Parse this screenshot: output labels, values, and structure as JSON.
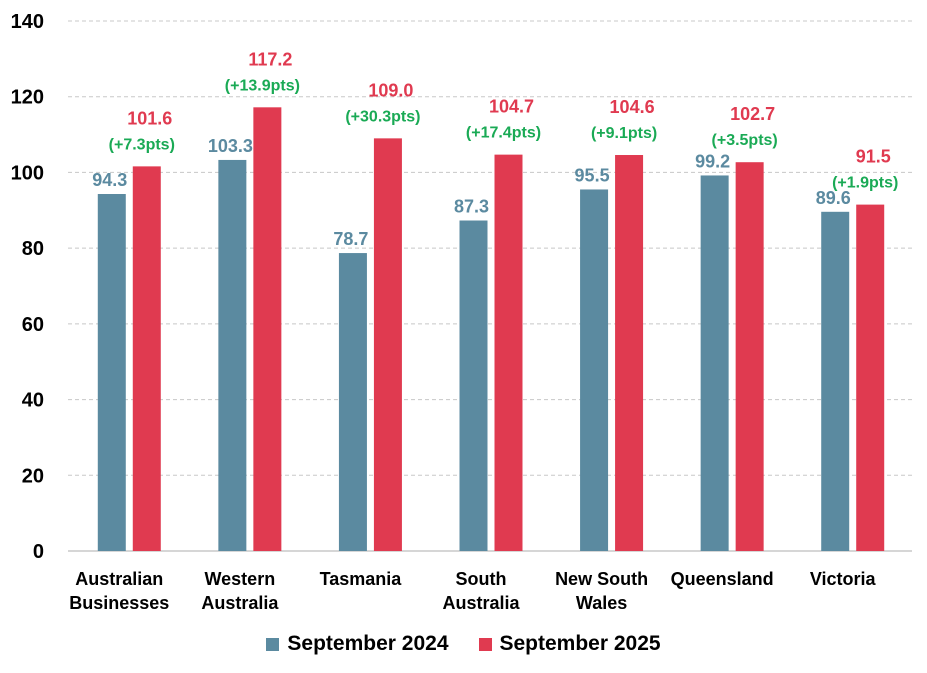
{
  "chart_data": {
    "type": "bar",
    "title": "",
    "xlabel": "",
    "ylabel": "",
    "ylim": [
      0,
      140
    ],
    "yticks": [
      0,
      20,
      40,
      60,
      80,
      100,
      120,
      140
    ],
    "grid": true,
    "legend_position": "bottom",
    "categories": [
      [
        "Australian",
        "Businesses"
      ],
      [
        "Western",
        "Australia"
      ],
      [
        "Tasmania"
      ],
      [
        "South",
        "Australia"
      ],
      [
        "New South",
        "Wales"
      ],
      [
        "Queensland"
      ],
      [
        "Victoria"
      ]
    ],
    "series": [
      {
        "name": "September 2024",
        "color": "#5b8aa0",
        "values": [
          94.3,
          103.3,
          78.7,
          87.3,
          95.5,
          99.2,
          89.6
        ],
        "labels": [
          "94.3",
          "103.3",
          "78.7",
          "87.3",
          "95.5",
          "99.2",
          "89.6"
        ]
      },
      {
        "name": "September 2025",
        "color": "#e03a50",
        "values": [
          101.6,
          117.2,
          109.0,
          104.7,
          104.6,
          102.7,
          91.5
        ],
        "labels": [
          "101.6",
          "117.2",
          "109.0",
          "104.7",
          "104.6",
          "102.7",
          "91.5"
        ]
      }
    ],
    "annotations": [
      "(+7.3pts)",
      "(+13.9pts)",
      "(+30.3pts)",
      "(+17.4pts)",
      "(+9.1pts)",
      "(+3.5pts)",
      "(+1.9pts)"
    ],
    "annotation_color": "#1aaa55"
  },
  "legend": {
    "items": [
      {
        "label": "September 2024",
        "color": "#5b8aa0"
      },
      {
        "label": "September 2025",
        "color": "#e03a50"
      }
    ]
  }
}
